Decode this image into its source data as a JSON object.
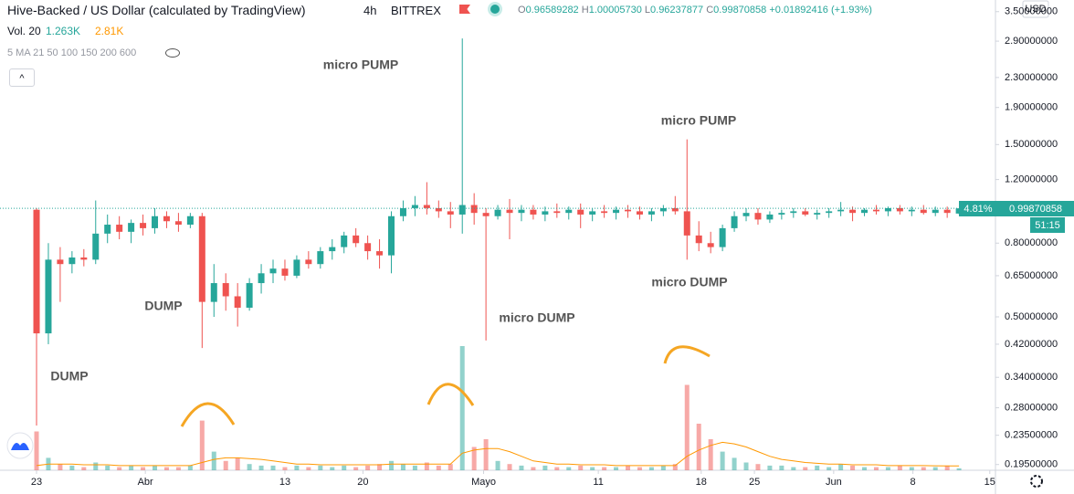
{
  "header": {
    "title": "Hive-Backed / US Dollar (calculated by TradingView)",
    "interval": "4h",
    "exchange": "BITTREX",
    "ohlc": [
      {
        "label": "O",
        "value": "0.96589282"
      },
      {
        "label": "H",
        "value": "1.00005730"
      },
      {
        "label": "L",
        "value": "0.96237877"
      },
      {
        "label": "C",
        "value": "0.99870858"
      }
    ],
    "change": "+0.01892416 (+1.93%)",
    "volume": {
      "label": "Vol. 20",
      "value": "1.263K",
      "ma": "2.81K"
    },
    "indicator": "5 MA 21 50 100 150 200 600",
    "currency": "USD",
    "price_change": "4.81%",
    "countdown": "51:15"
  },
  "chart_data": {
    "type": "candlestick",
    "log_y": true,
    "up_color": "#26a69a",
    "down_color": "#ef5350",
    "volume_ma_color": "#ff9800",
    "annotations": [
      "micro PUMP",
      "DUMP",
      "DUMP",
      "micro PUMP",
      "micro DUMP",
      "micro DUMP"
    ],
    "xlim": [
      -3.09,
      81.08
    ],
    "xticks": [
      {
        "value": 0,
        "label": "23"
      },
      {
        "value": 9.2,
        "label": "Abr"
      },
      {
        "value": 21,
        "label": "13"
      },
      {
        "value": 27.6,
        "label": "20"
      },
      {
        "value": 37.8,
        "label": "Mayo"
      },
      {
        "value": 47.5,
        "label": "11"
      },
      {
        "value": 56.2,
        "label": "18"
      },
      {
        "value": 60.7,
        "label": "25"
      },
      {
        "value": 67.4,
        "label": "Jun"
      },
      {
        "value": 74.1,
        "label": "8"
      },
      {
        "value": 80.6,
        "label": "15"
      }
    ],
    "ylim": [
      0.188,
      3.77
    ],
    "yticks": [
      {
        "value": 0.195,
        "label": "0.19500000"
      },
      {
        "value": 0.235,
        "label": "0.23500000"
      },
      {
        "value": 0.28,
        "label": "0.28000000"
      },
      {
        "value": 0.34,
        "label": "0.34000000"
      },
      {
        "value": 0.42,
        "label": "0.42000000"
      },
      {
        "value": 0.5,
        "label": "0.50000000"
      },
      {
        "value": 0.65,
        "label": "0.65000000"
      },
      {
        "value": 0.8,
        "label": "0.80000000"
      },
      {
        "value": 1.2,
        "label": "1.20000000"
      },
      {
        "value": 1.5,
        "label": "1.50000000"
      },
      {
        "value": 1.9,
        "label": "1.90000000"
      },
      {
        "value": 2.3,
        "label": "2.30000000"
      },
      {
        "value": 2.9,
        "label": "2.90000000"
      },
      {
        "value": 3.5,
        "label": "3.50000000"
      }
    ],
    "vlim": [
      0,
      100
    ],
    "x": [
      0,
      1,
      2,
      3,
      4,
      5,
      6,
      7,
      8,
      9,
      10,
      11,
      12,
      13,
      14,
      15,
      16,
      17,
      18,
      19,
      20,
      21,
      22,
      23,
      24,
      25,
      26,
      27,
      28,
      29,
      30,
      31,
      32,
      33,
      34,
      35,
      36,
      37,
      38,
      39,
      40,
      41,
      42,
      43,
      44,
      45,
      46,
      47,
      48,
      49,
      50,
      51,
      52,
      53,
      54,
      55,
      56,
      57,
      58,
      59,
      60,
      61,
      62,
      63,
      64,
      65,
      66,
      67,
      68,
      69,
      70,
      71,
      72,
      73,
      74,
      75,
      76,
      77,
      78
    ],
    "open": [
      0.99,
      0.45,
      0.72,
      0.7,
      0.73,
      0.72,
      0.85,
      0.9,
      0.86,
      0.91,
      0.88,
      0.95,
      0.92,
      0.9,
      0.95,
      0.55,
      0.62,
      0.57,
      0.53,
      0.62,
      0.66,
      0.68,
      0.65,
      0.72,
      0.7,
      0.76,
      0.78,
      0.84,
      0.8,
      0.76,
      0.74,
      0.95,
      1.0,
      1.02,
      1.0,
      0.98,
      0.96,
      1.02,
      0.97,
      0.95,
      0.99,
      0.97,
      0.99,
      0.96,
      0.98,
      0.97,
      0.99,
      0.96,
      0.98,
      0.97,
      0.99,
      0.98,
      0.96,
      0.98,
      1.0,
      0.98,
      0.84,
      0.8,
      0.78,
      0.88,
      0.95,
      0.97,
      0.93,
      0.96,
      0.97,
      0.98,
      0.96,
      0.97,
      0.98,
      0.99,
      0.97,
      0.99,
      0.98,
      1.0,
      0.98,
      0.99,
      0.97,
      0.99,
      0.96589282
    ],
    "high": [
      1.0,
      0.8,
      0.78,
      0.76,
      0.77,
      1.05,
      0.96,
      0.95,
      0.93,
      0.96,
      1.0,
      0.98,
      0.97,
      0.97,
      0.97,
      0.7,
      0.66,
      0.62,
      0.64,
      0.7,
      0.72,
      0.72,
      0.74,
      0.76,
      0.78,
      0.82,
      0.86,
      0.88,
      0.84,
      0.82,
      0.98,
      1.05,
      1.08,
      1.18,
      1.05,
      1.04,
      2.95,
      1.1,
      1.0,
      1.02,
      1.06,
      1.02,
      1.02,
      1.01,
      1.03,
      1.01,
      1.03,
      1.0,
      1.02,
      1.01,
      1.02,
      1.01,
      1.0,
      1.02,
      1.08,
      1.55,
      0.92,
      0.86,
      0.9,
      0.98,
      1.0,
      1.0,
      0.98,
      0.99,
      1.0,
      1.0,
      0.99,
      1.0,
      1.04,
      1.01,
      1.0,
      1.02,
      1.01,
      1.02,
      1.01,
      1.02,
      1.01,
      1.01,
      1.0000573
    ],
    "low": [
      0.25,
      0.42,
      0.55,
      0.66,
      0.69,
      0.7,
      0.8,
      0.82,
      0.8,
      0.84,
      0.85,
      0.88,
      0.86,
      0.88,
      0.41,
      0.5,
      0.52,
      0.47,
      0.52,
      0.58,
      0.62,
      0.63,
      0.64,
      0.68,
      0.68,
      0.72,
      0.75,
      0.78,
      0.72,
      0.68,
      0.66,
      0.92,
      0.95,
      0.96,
      0.94,
      0.88,
      0.85,
      0.9,
      0.43,
      0.93,
      0.82,
      0.92,
      0.93,
      0.92,
      0.94,
      0.93,
      0.88,
      0.92,
      0.94,
      0.93,
      0.94,
      0.93,
      0.92,
      0.95,
      0.96,
      0.72,
      0.76,
      0.75,
      0.76,
      0.86,
      0.92,
      0.9,
      0.91,
      0.93,
      0.94,
      0.95,
      0.93,
      0.94,
      0.95,
      0.92,
      0.95,
      0.96,
      0.95,
      0.96,
      0.95,
      0.96,
      0.95,
      0.94,
      0.96237877
    ],
    "close": [
      0.45,
      0.72,
      0.7,
      0.73,
      0.72,
      0.85,
      0.9,
      0.86,
      0.91,
      0.88,
      0.95,
      0.92,
      0.9,
      0.95,
      0.55,
      0.62,
      0.57,
      0.53,
      0.62,
      0.66,
      0.68,
      0.65,
      0.72,
      0.7,
      0.76,
      0.78,
      0.84,
      0.8,
      0.76,
      0.74,
      0.95,
      1.0,
      1.02,
      1.0,
      0.98,
      0.96,
      1.02,
      0.97,
      0.95,
      0.99,
      0.97,
      0.99,
      0.96,
      0.98,
      0.97,
      0.99,
      0.96,
      0.98,
      0.97,
      0.99,
      0.98,
      0.96,
      0.98,
      1.0,
      0.98,
      0.84,
      0.8,
      0.78,
      0.88,
      0.95,
      0.97,
      0.93,
      0.96,
      0.97,
      0.98,
      0.96,
      0.97,
      0.98,
      0.99,
      0.97,
      0.99,
      0.98,
      1.0,
      0.98,
      0.99,
      0.97,
      0.99,
      0.97,
      0.99870858
    ],
    "volume": [
      25,
      8,
      4,
      3,
      2,
      5,
      3,
      2,
      3,
      2,
      3,
      2,
      2,
      3,
      32,
      12,
      6,
      8,
      4,
      3,
      3,
      2,
      3,
      2,
      3,
      2,
      3,
      2,
      3,
      4,
      6,
      4,
      3,
      5,
      3,
      4,
      80,
      15,
      20,
      6,
      4,
      3,
      2,
      3,
      2,
      2,
      3,
      2,
      2,
      2,
      3,
      2,
      2,
      3,
      4,
      55,
      30,
      20,
      12,
      8,
      5,
      4,
      3,
      3,
      2,
      2,
      3,
      2,
      4,
      3,
      2,
      2,
      2,
      3,
      2,
      2,
      2,
      3,
      1.263
    ],
    "volume_ma": [
      3,
      4,
      4,
      4,
      3.5,
      3.5,
      3.5,
      3,
      3,
      3,
      3,
      3,
      3,
      3,
      5,
      7,
      8,
      8,
      7.5,
      7,
      6,
      5,
      4,
      4,
      3.5,
      3.5,
      3.5,
      3.5,
      3.5,
      3.5,
      4,
      4,
      4,
      4,
      4,
      4,
      11,
      13,
      14,
      14,
      12,
      9,
      6,
      5,
      4,
      4,
      3.5,
      3.5,
      3.5,
      3,
      3,
      3,
      3,
      3,
      3,
      9,
      13,
      16,
      18,
      17,
      15,
      12,
      9,
      7,
      6,
      5,
      4.5,
      4,
      4,
      3.5,
      3.5,
      3.5,
      3,
      3,
      3,
      3,
      2.9,
      2.8,
      2.81
    ]
  }
}
